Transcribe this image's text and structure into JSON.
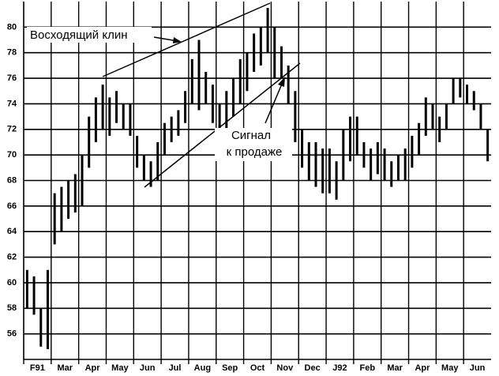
{
  "chart_data": {
    "type": "hilo",
    "annotations": [
      "Восходящий клин",
      "Сигнал",
      "к продаже"
    ],
    "categories": [
      "F91",
      null,
      null,
      null,
      "Mar",
      null,
      null,
      null,
      "Apr",
      null,
      null,
      null,
      "May",
      null,
      null,
      null,
      "Jun",
      null,
      null,
      null,
      "Jul",
      null,
      null,
      null,
      "Aug",
      null,
      null,
      null,
      "Sep",
      null,
      null,
      null,
      "Oct",
      null,
      null,
      null,
      "Nov",
      null,
      null,
      null,
      "Dec",
      null,
      null,
      null,
      "J92",
      null,
      null,
      null,
      "Feb",
      null,
      null,
      null,
      "Mar",
      null,
      null,
      null,
      "Apr",
      null,
      null,
      null,
      "May",
      null,
      null,
      null,
      "Jun",
      null,
      null,
      null
    ],
    "values": [
      [
        58,
        61
      ],
      [
        57.5,
        60.5
      ],
      [
        55,
        58
      ],
      [
        54.8,
        61
      ],
      [
        63,
        67
      ],
      [
        64,
        67.5
      ],
      [
        65,
        68
      ],
      [
        65.5,
        68.5
      ],
      [
        66,
        70
      ],
      [
        69,
        73
      ],
      [
        71,
        74.5
      ],
      [
        72,
        75.5
      ],
      [
        71.5,
        74.5
      ],
      [
        72.5,
        75
      ],
      [
        72,
        74
      ],
      [
        71.5,
        74
      ],
      [
        69,
        71.5
      ],
      [
        68,
        70
      ],
      [
        67.5,
        69.5
      ],
      [
        68,
        71
      ],
      [
        70,
        72.5
      ],
      [
        71,
        73
      ],
      [
        71.5,
        73.5
      ],
      [
        72.5,
        75
      ],
      [
        74,
        77.5
      ],
      [
        73.5,
        79
      ],
      [
        74,
        76.5
      ],
      [
        72.5,
        75.5
      ],
      [
        71.5,
        74
      ],
      [
        72,
        75
      ],
      [
        73,
        76
      ],
      [
        74,
        77.5
      ],
      [
        75,
        78
      ],
      [
        76.5,
        79.5
      ],
      [
        77,
        80
      ],
      [
        78,
        81.5
      ],
      [
        76,
        80
      ],
      [
        76,
        78.5
      ],
      [
        74,
        77
      ],
      [
        71,
        75
      ],
      [
        69,
        72
      ],
      [
        68,
        71
      ],
      [
        67.5,
        71
      ],
      [
        67,
        70.5
      ],
      [
        67,
        70.5
      ],
      [
        66.5,
        69.5
      ],
      [
        68,
        72
      ],
      [
        69.5,
        73
      ],
      [
        70,
        73
      ],
      [
        69,
        71
      ],
      [
        68,
        70.5
      ],
      [
        68.5,
        71
      ],
      [
        68,
        70.5
      ],
      [
        67.5,
        69.5
      ],
      [
        68,
        70
      ],
      [
        68,
        70.5
      ],
      [
        69,
        71.5
      ],
      [
        70,
        72.5
      ],
      [
        71.5,
        74.5
      ],
      [
        72,
        74
      ],
      [
        71,
        73
      ],
      [
        72,
        74
      ],
      [
        74,
        76
      ],
      [
        74.5,
        76
      ],
      [
        74,
        75.5
      ],
      [
        73.5,
        75
      ],
      [
        72,
        74
      ],
      [
        69.5,
        72
      ]
    ],
    "color": "#000000",
    "ylim": [
      54,
      82
    ],
    "yticks": [
      56,
      58,
      60,
      62,
      64,
      66,
      68,
      70,
      72,
      74,
      76,
      78,
      80
    ],
    "grid": true
  }
}
